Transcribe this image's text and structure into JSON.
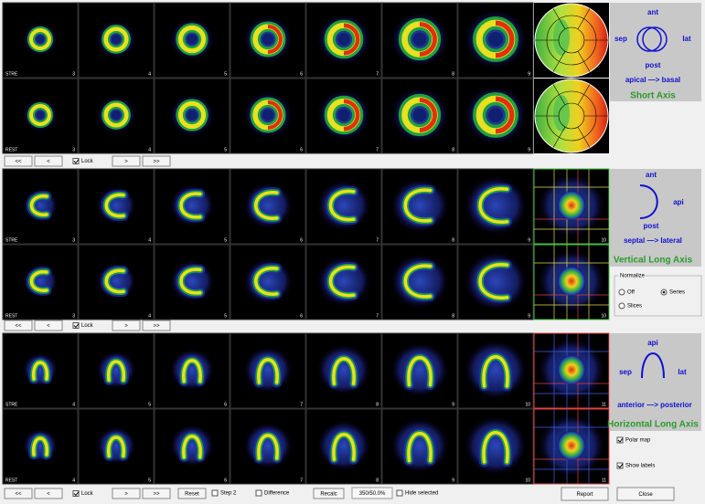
{
  "nav": {
    "buttons": [
      "<<",
      "<",
      ">",
      ">>"
    ],
    "lock": "Lock"
  },
  "sections": [
    {
      "rows": [
        {
          "label": "STRE",
          "slices": [
            3,
            4,
            5,
            6,
            7,
            8,
            9
          ]
        },
        {
          "label": "REST",
          "slices": [
            3,
            4,
            5,
            6,
            7,
            8,
            9
          ]
        }
      ],
      "diagram": {
        "top": "ant",
        "left": "sep",
        "right": "lat",
        "bottom": "post",
        "direction": "apical —> basal",
        "title": "Short Axis"
      }
    },
    {
      "rows": [
        {
          "label": "STRE",
          "slices": [
            3,
            4,
            5,
            6,
            7,
            8,
            9,
            10
          ]
        },
        {
          "label": "REST",
          "slices": [
            3,
            4,
            5,
            6,
            7,
            8,
            9,
            10
          ]
        }
      ],
      "diagram": {
        "top": "ant",
        "right": "api",
        "bottom": "post",
        "direction": "septal —> lateral",
        "title": "Vertical Long Axis"
      }
    },
    {
      "rows": [
        {
          "label": "STRE",
          "slices": [
            4,
            5,
            6,
            7,
            8,
            9,
            10,
            11
          ]
        },
        {
          "label": "REST",
          "slices": [
            4,
            5,
            6,
            7,
            8,
            9,
            10,
            11
          ]
        }
      ],
      "diagram": {
        "top": "api",
        "left": "sep",
        "right": "lat",
        "direction": "anterior —> posterior",
        "title": "Horizontal Long Axis"
      }
    }
  ],
  "normalize": {
    "title": "Normalize",
    "options": [
      "Off",
      "Series",
      "Slices"
    ]
  },
  "checks": [
    "Polar map",
    "Show labels"
  ],
  "bottom": {
    "reset": "Reset",
    "step": "Step 2",
    "difference": "Difference",
    "recalc": "Recalc",
    "status": "350/50.0%",
    "hide": "Hide selected",
    "report": "Report",
    "close": "Close"
  }
}
